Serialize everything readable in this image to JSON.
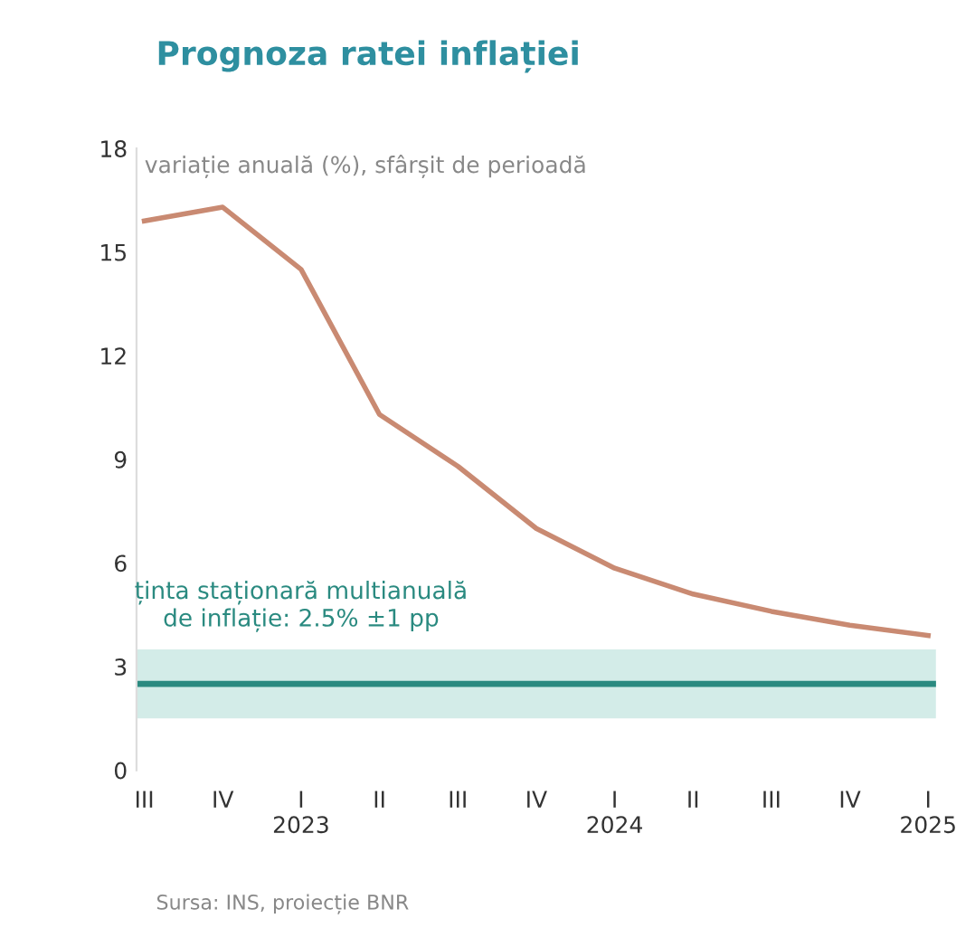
{
  "chart_data": {
    "type": "line",
    "title": "Prognoza ratei inflației",
    "subtitle": "variație anuală (%), sfârșit de perioadă",
    "categories": [
      "III",
      "IV",
      "I\n2023",
      "II",
      "III",
      "IV",
      "I\n2024",
      "II",
      "III",
      "IV",
      "I\n2025"
    ],
    "series": [
      {
        "color": "#c98a72",
        "values": [
          15.9,
          16.3,
          14.5,
          10.3,
          8.8,
          7.0,
          5.85,
          5.1,
          4.6,
          4.2,
          3.9
        ]
      }
    ],
    "ylim": [
      0,
      18
    ],
    "yticks": [
      0,
      3,
      6,
      9,
      12,
      15,
      18
    ],
    "ref_lines": [
      {
        "axis": "y",
        "value": 2.5,
        "color": "#2a8a80"
      }
    ],
    "bands": [
      {
        "axis": "y",
        "from": 1.5,
        "to": 3.5,
        "label": "ținta staționară multianuală\nde inflație: 2.5% ±1 pp",
        "color": "#d3ece8"
      }
    ],
    "annotations": [
      "Sursa: INS, proiecție BNR"
    ],
    "grid": false,
    "marker": "none",
    "line_style": "solid"
  }
}
